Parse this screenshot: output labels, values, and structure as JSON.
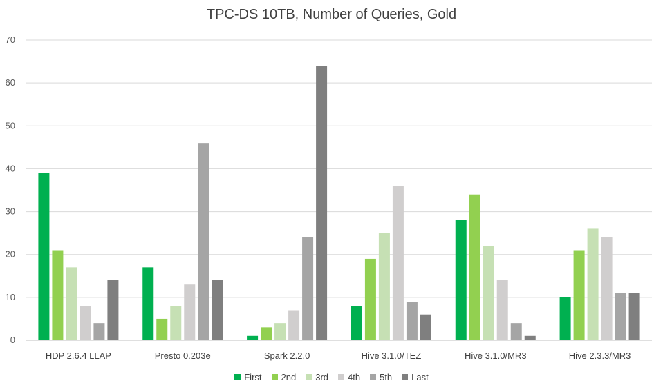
{
  "chart_data": {
    "type": "bar",
    "title": "TPC-DS 10TB, Number of Queries, Gold",
    "xlabel": "",
    "ylabel": "",
    "ylim": [
      0,
      70
    ],
    "yticks": [
      0,
      10,
      20,
      30,
      40,
      50,
      60,
      70
    ],
    "grid": true,
    "legend_position": "bottom",
    "categories": [
      "HDP 2.6.4 LLAP",
      "Presto 0.203e",
      "Spark 2.2.0",
      "Hive 3.1.0/TEZ",
      "Hive 3.1.0/MR3",
      "Hive 2.3.3/MR3"
    ],
    "series": [
      {
        "name": "First",
        "color": "#00b050",
        "values": [
          39,
          17,
          1,
          8,
          28,
          10
        ]
      },
      {
        "name": "2nd",
        "color": "#92d050",
        "values": [
          21,
          5,
          3,
          19,
          34,
          21
        ]
      },
      {
        "name": "3rd",
        "color": "#c6e0b4",
        "values": [
          17,
          8,
          4,
          25,
          22,
          26
        ]
      },
      {
        "name": "4th",
        "color": "#d0cece",
        "values": [
          8,
          13,
          7,
          36,
          14,
          24
        ]
      },
      {
        "name": "5th",
        "color": "#a5a5a5",
        "values": [
          4,
          46,
          24,
          9,
          4,
          11
        ]
      },
      {
        "name": "Last",
        "color": "#7f7f7f",
        "values": [
          14,
          14,
          64,
          6,
          1,
          11
        ]
      }
    ]
  }
}
